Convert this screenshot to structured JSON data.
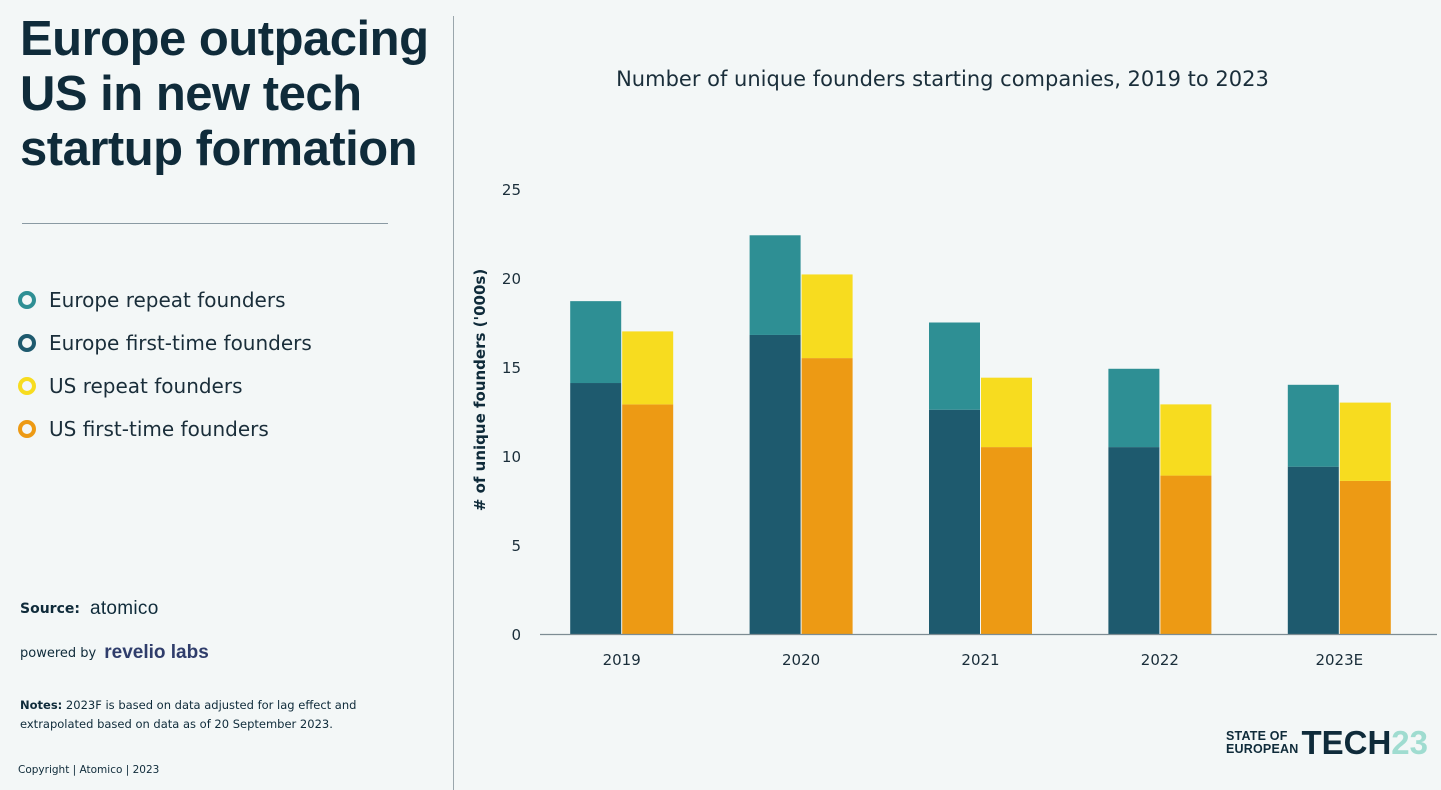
{
  "headline": [
    "Europe outpacing",
    "US in new tech",
    "startup formation"
  ],
  "legend": [
    {
      "label": "Europe repeat founders",
      "color": "#2e8f94"
    },
    {
      "label": "Europe first-time founders",
      "color": "#1e5a6e"
    },
    {
      "label": "US repeat founders",
      "color": "#f7dc1f"
    },
    {
      "label": "US first-time founders",
      "color": "#ed9a14"
    }
  ],
  "source": {
    "label": "Source:",
    "logo": "atomico"
  },
  "powered": {
    "label": "powered by",
    "logo": "revelio labs"
  },
  "notes": {
    "bold": "Notes:",
    "text": " 2023F is based on data adjusted for lag effect and extrapolated based on data as of 20 September 2023."
  },
  "copyright": "Copyright | Atomico | 2023",
  "brand": {
    "line1": "STATE OF",
    "line2": "EUROPEAN",
    "word": "TECH",
    "num": "23"
  },
  "chart_data": {
    "type": "bar",
    "stacked": true,
    "title": "Number of unique founders starting companies, 2019 to 2023",
    "ylabel": "# of unique founders ('000s)",
    "xlabel": "",
    "categories": [
      "2019",
      "2020",
      "2021",
      "2022",
      "2023E"
    ],
    "ylim": [
      0,
      25
    ],
    "yticks": [
      0,
      5,
      10,
      15,
      20,
      25
    ],
    "series": [
      {
        "name": "Europe first-time founders",
        "stack": "Europe",
        "color": "#1e5a6e",
        "values": [
          14.1,
          16.8,
          12.6,
          10.5,
          9.4
        ]
      },
      {
        "name": "Europe repeat founders",
        "stack": "Europe",
        "color": "#2e8f94",
        "values": [
          4.6,
          5.6,
          4.9,
          4.4,
          4.6
        ]
      },
      {
        "name": "US first-time founders",
        "stack": "US",
        "color": "#ed9a14",
        "values": [
          12.9,
          15.5,
          10.5,
          8.9,
          8.6
        ]
      },
      {
        "name": "US repeat founders",
        "stack": "US",
        "color": "#f7dc1f",
        "values": [
          4.1,
          4.7,
          3.9,
          4.0,
          4.4
        ]
      }
    ]
  }
}
